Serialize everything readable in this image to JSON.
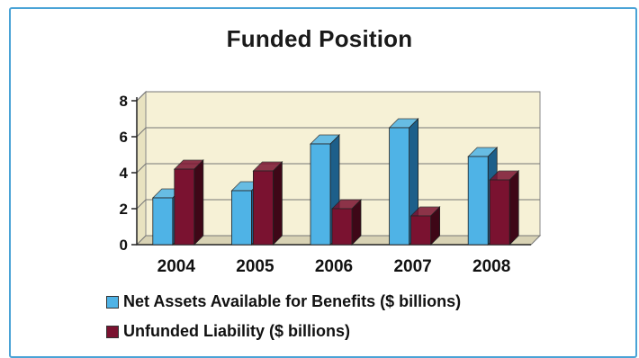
{
  "chart_data": {
    "type": "bar",
    "title": "Funded Position",
    "categories": [
      "2004",
      "2005",
      "2006",
      "2007",
      "2008"
    ],
    "series": [
      {
        "name": "Net Assets Available for Benefits ($ billions)",
        "values": [
          2.6,
          3.0,
          5.6,
          6.5,
          4.9
        ],
        "color": "#4fb3e6",
        "side_color": "#1d5f8a"
      },
      {
        "name": "Unfunded Liability ($ billions)",
        "values": [
          4.2,
          4.1,
          2.0,
          1.6,
          3.6
        ],
        "color": "#7a1230",
        "side_color": "#3e0717"
      }
    ],
    "ylim": [
      0,
      8
    ],
    "yticks": [
      0,
      2,
      4,
      6,
      8
    ],
    "xlabel": "",
    "ylabel": "",
    "grid": true,
    "legend_position": "bottom",
    "plot_background": "#f6f1d6"
  }
}
